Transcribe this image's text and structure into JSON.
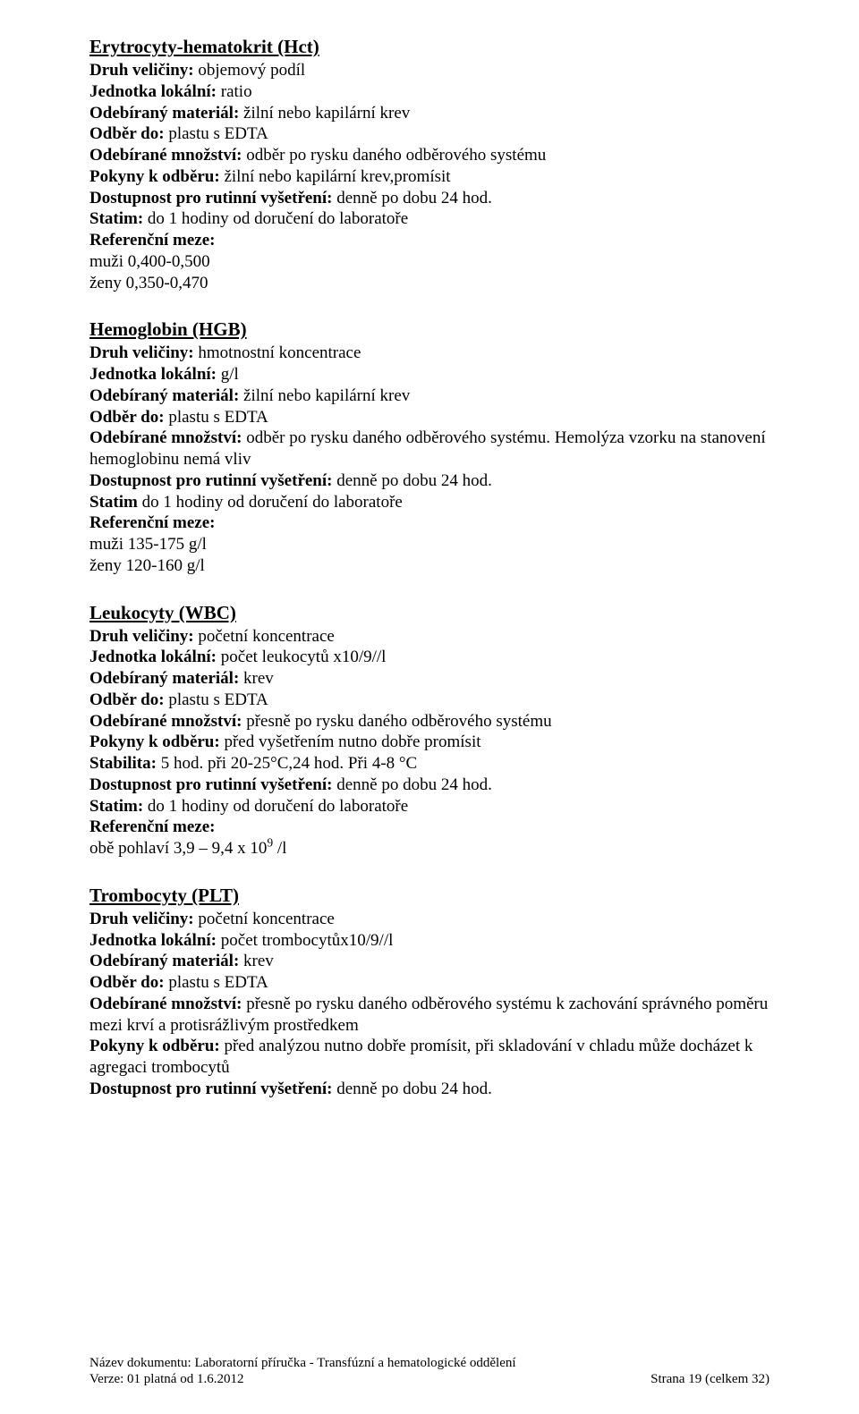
{
  "sections": [
    {
      "title": "Erytrocyty-hematokrit (Hct)",
      "lines": [
        {
          "label": "Druh veličiny: ",
          "value": "objemový podíl"
        },
        {
          "label": "Jednotka lokální: ",
          "value": "ratio"
        },
        {
          "label": "Odebíraný materiál: ",
          "value": "žilní nebo kapilární krev"
        },
        {
          "label": "Odběr do: ",
          "value": " plastu s EDTA"
        },
        {
          "label": "Odebírané množství: ",
          "value": "odběr po rysku daného odběrového systému"
        },
        {
          "label": "Pokyny k odběru: ",
          "value": "žilní nebo kapilární krev,promísit"
        },
        {
          "label": "Dostupnost pro rutinní vyšetření: ",
          "value": "denně po dobu 24 hod."
        },
        {
          "label": "Statim: ",
          "value": "do 1 hodiny od doručení do laboratoře"
        },
        {
          "label": "Referenční meze:",
          "value": ""
        },
        {
          "label": "",
          "value": "muži 0,400-0,500"
        },
        {
          "label": "",
          "value": "ženy 0,350-0,470"
        }
      ]
    },
    {
      "title": "Hemoglobin (HGB)",
      "lines": [
        {
          "label": "Druh veličiny: ",
          "value": "hmotnostní koncentrace"
        },
        {
          "label": "Jednotka lokální: ",
          "value": "g/l"
        },
        {
          "label": "Odebíraný materiál: ",
          "value": "žilní nebo kapilární krev"
        },
        {
          "label": "Odběr do: ",
          "value": " plastu s EDTA"
        },
        {
          "label": "Odebírané množství: ",
          "value": "odběr po rysku daného odběrového systému. Hemolýza vzorku na stanovení hemoglobinu nemá vliv"
        },
        {
          "label": "Dostupnost pro rutinní vyšetření: ",
          "value": "denně po dobu 24 hod."
        },
        {
          "label": "Statim ",
          "value": "do 1 hodiny od doručení do laboratoře"
        },
        {
          "label": "Referenční meze:",
          "value": ""
        },
        {
          "label": "",
          "value": "muži 135-175 g/l"
        },
        {
          "label": "",
          "value": "ženy 120-160 g/l"
        }
      ]
    },
    {
      "title": "Leukocyty (WBC)",
      "lines": [
        {
          "label": "Druh veličiny: ",
          "value": "početní koncentrace"
        },
        {
          "label": "Jednotka lokální: ",
          "value": "počet leukocytů x10/9//l"
        },
        {
          "label": "Odebíraný materiál: ",
          "value": "krev"
        },
        {
          "label": "Odběr do: ",
          "value": " plastu s EDTA"
        },
        {
          "label": "Odebírané množství: ",
          "value": "přesně po rysku daného odběrového systému"
        },
        {
          "label": "Pokyny k odběru: ",
          "value": "před vyšetřením nutno dobře promísit"
        },
        {
          "label": "Stabilita: ",
          "value": "5 hod. při 20-25°C,24 hod. Při 4-8 °C"
        },
        {
          "label": "Dostupnost pro rutinní vyšetření: ",
          "value": "denně po dobu 24 hod."
        },
        {
          "label": "Statim: ",
          "value": "do 1 hodiny od doručení do laboratoře"
        },
        {
          "label": "Referenční meze:",
          "value": ""
        },
        {
          "label": "",
          "value": "obě pohlaví 3,9 – 9,4 x 10",
          "sup": "9",
          "tail": " /l"
        }
      ]
    },
    {
      "title": "Trombocyty (PLT)",
      "lines": [
        {
          "label": "Druh veličiny: ",
          "value": "početní koncentrace"
        },
        {
          "label": "Jednotka lokální: ",
          "value": "počet trombocytůx10/9//l"
        },
        {
          "label": "Odebíraný materiál: ",
          "value": "krev"
        },
        {
          "label": "Odběr do: ",
          "value": " plastu s EDTA"
        },
        {
          "label": "Odebírané množství: ",
          "value": "přesně po rysku daného odběrového systému k zachování správného poměru mezi krví a protisrážlivým prostředkem"
        },
        {
          "label": "Pokyny k odběru: ",
          "value": "před analýzou nutno dobře promísit, při skladování v chladu může docházet k agregaci trombocytů"
        },
        {
          "label": "Dostupnost pro rutinní vyšetření: ",
          "value": "denně po dobu 24 hod."
        }
      ]
    }
  ],
  "footer": {
    "line1": "Název dokumentu: Laboratorní příručka - Transfúzní a hematologické oddělení",
    "line2_left": "Verze: 01 platná od 1.6.2012",
    "line2_right": "Strana 19 (celkem 32)"
  }
}
